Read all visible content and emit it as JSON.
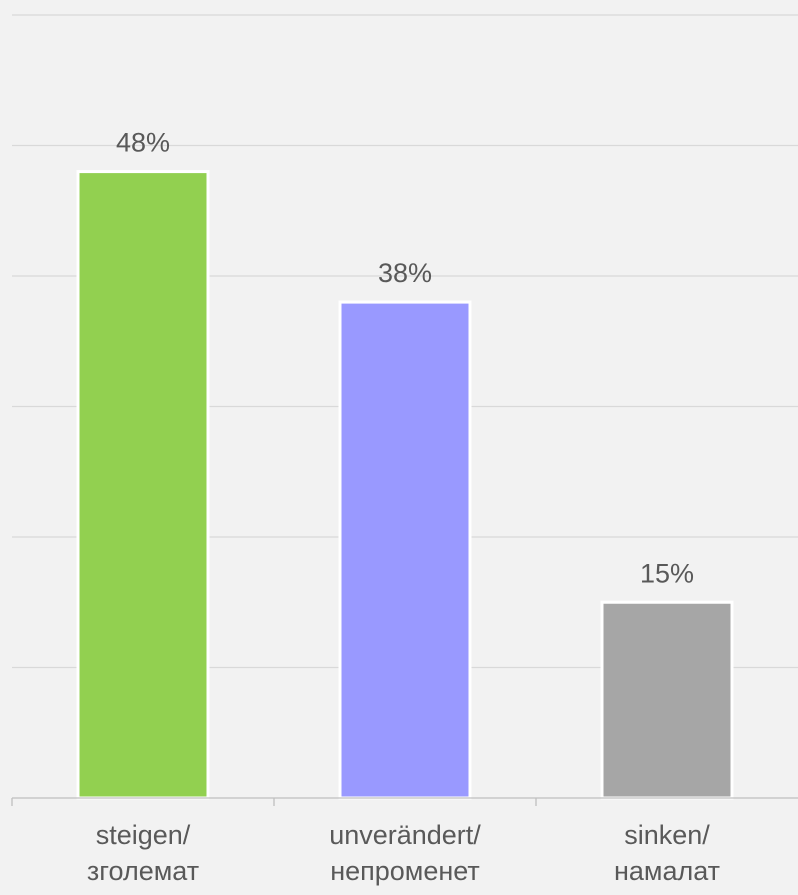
{
  "chart_data": {
    "type": "bar",
    "categories": [
      [
        "steigen/",
        "зголемат"
      ],
      [
        "unverändert/",
        "непроменет"
      ],
      [
        "sinken/",
        "намалат"
      ]
    ],
    "values": [
      48,
      38,
      15
    ],
    "data_labels": [
      "48%",
      "38%",
      "15%"
    ],
    "bar_colors": [
      "#92d050",
      "#9999ff",
      "#a6a6a6"
    ],
    "ylim": [
      0,
      60
    ],
    "gridlines": [
      10,
      20,
      30,
      40,
      50,
      60
    ],
    "grid": true,
    "legend": "none",
    "title": "",
    "xlabel": "",
    "ylabel": ""
  },
  "colors": {
    "background": "#f2f2f2",
    "grid": "#d9d9d9",
    "axis": "#bfbfbf",
    "text": "#595959",
    "bar_border": "#ffffff"
  }
}
